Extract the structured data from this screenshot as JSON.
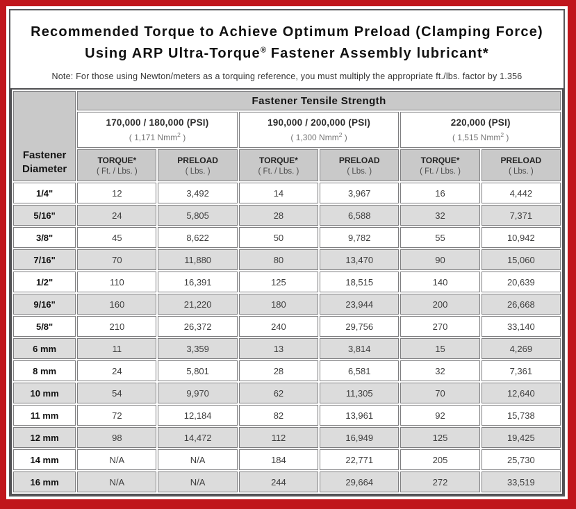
{
  "colors": {
    "frame_red": "#c0161c",
    "header_gray": "#c9c9c9",
    "stripe_gray": "#dcdcdc",
    "cell_border": "#7e7e80"
  },
  "header": {
    "title_line1": "Recommended Torque to Achieve Optimum Preload (Clamping Force)",
    "title_line2_pre": "Using ARP Ultra-Torque",
    "title_line2_sup": "®",
    "title_line2_post": " Fastener Assembly lubricant*",
    "note": "Note: For those using Newton/meters as a torquing reference, you must multiply the appropriate ft./lbs. factor by 1.356"
  },
  "table": {
    "corner_line1": "Fastener",
    "corner_line2": "Diameter",
    "tensile_header": "Fastener Tensile Strength",
    "psi_groups": [
      {
        "psi": "170,000 / 180,000 (PSI)",
        "nmm_prefix": "( 1,171 Nmm",
        "nmm_sup": "2",
        "nmm_suffix": " )"
      },
      {
        "psi": "190,000 / 200,000 (PSI)",
        "nmm_prefix": "( 1,300 Nmm",
        "nmm_sup": "2",
        "nmm_suffix": " )"
      },
      {
        "psi": "220,000 (PSI)",
        "nmm_prefix": "( 1,515 Nmm",
        "nmm_sup": "2",
        "nmm_suffix": " )"
      }
    ],
    "sub_headers": [
      {
        "line1": "TORQUE*",
        "line2": "( Ft. / Lbs. )"
      },
      {
        "line1": "PRELOAD",
        "line2": "( Lbs. )"
      },
      {
        "line1": "TORQUE*",
        "line2": "( Ft. / Lbs. )"
      },
      {
        "line1": "PRELOAD",
        "line2": "( Lbs. )"
      },
      {
        "line1": "TORQUE*",
        "line2": "( Ft. / Lbs. )"
      },
      {
        "line1": "PRELOAD",
        "line2": "( Lbs. )"
      }
    ],
    "rows": [
      {
        "diameter": "1/4\"",
        "values": [
          "12",
          "3,492",
          "14",
          "3,967",
          "16",
          "4,442"
        ]
      },
      {
        "diameter": "5/16\"",
        "values": [
          "24",
          "5,805",
          "28",
          "6,588",
          "32",
          "7,371"
        ]
      },
      {
        "diameter": "3/8\"",
        "values": [
          "45",
          "8,622",
          "50",
          "9,782",
          "55",
          "10,942"
        ]
      },
      {
        "diameter": "7/16\"",
        "values": [
          "70",
          "11,880",
          "80",
          "13,470",
          "90",
          "15,060"
        ]
      },
      {
        "diameter": "1/2\"",
        "values": [
          "110",
          "16,391",
          "125",
          "18,515",
          "140",
          "20,639"
        ]
      },
      {
        "diameter": "9/16\"",
        "values": [
          "160",
          "21,220",
          "180",
          "23,944",
          "200",
          "26,668"
        ]
      },
      {
        "diameter": "5/8\"",
        "values": [
          "210",
          "26,372",
          "240",
          "29,756",
          "270",
          "33,140"
        ]
      },
      {
        "diameter": "6 mm",
        "values": [
          "11",
          "3,359",
          "13",
          "3,814",
          "15",
          "4,269"
        ]
      },
      {
        "diameter": "8 mm",
        "values": [
          "24",
          "5,801",
          "28",
          "6,581",
          "32",
          "7,361"
        ]
      },
      {
        "diameter": "10 mm",
        "values": [
          "54",
          "9,970",
          "62",
          "11,305",
          "70",
          "12,640"
        ]
      },
      {
        "diameter": "11 mm",
        "values": [
          "72",
          "12,184",
          "82",
          "13,961",
          "92",
          "15,738"
        ]
      },
      {
        "diameter": "12 mm",
        "values": [
          "98",
          "14,472",
          "112",
          "16,949",
          "125",
          "19,425"
        ]
      },
      {
        "diameter": "14 mm",
        "values": [
          "N/A",
          "N/A",
          "184",
          "22,771",
          "205",
          "25,730"
        ]
      },
      {
        "diameter": "16 mm",
        "values": [
          "N/A",
          "N/A",
          "244",
          "29,664",
          "272",
          "33,519"
        ]
      }
    ]
  }
}
